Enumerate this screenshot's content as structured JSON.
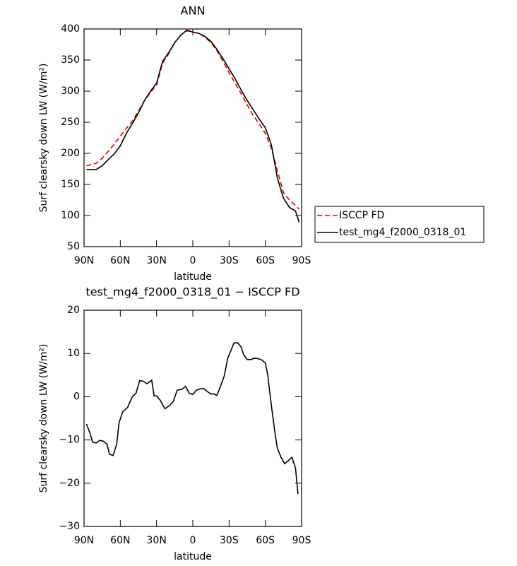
{
  "chart_data": [
    {
      "type": "line",
      "title": "ANN",
      "xlabel": "latitude",
      "ylabel": "Surf clearsky down LW (W/m²)",
      "x": [
        88,
        80,
        75,
        70,
        65,
        60,
        55,
        50,
        45,
        40,
        35,
        30,
        25,
        20,
        15,
        10,
        5,
        0,
        -5,
        -10,
        -15,
        -20,
        -25,
        -30,
        -35,
        -40,
        -45,
        -50,
        -55,
        -60,
        -65,
        -70,
        -75,
        -80,
        -85,
        -88
      ],
      "series": [
        {
          "name": "ISCCP FD",
          "color": "#e00000",
          "dashed": true,
          "values": [
            180,
            184,
            192,
            203,
            215,
            228,
            240,
            252,
            268,
            285,
            298,
            310,
            345,
            360,
            378,
            390,
            397,
            395,
            393,
            387,
            378,
            365,
            348,
            330,
            313,
            296,
            278,
            261,
            247,
            232,
            208,
            172,
            137,
            125,
            116,
            110
          ]
        },
        {
          "name": "test_mg4_f2000_0318_01",
          "color": "#000000",
          "dashed": false,
          "values": [
            174,
            174,
            180,
            190,
            199,
            212,
            232,
            248,
            265,
            285,
            300,
            313,
            348,
            362,
            378,
            390,
            398,
            395,
            393,
            388,
            380,
            367,
            352,
            336,
            320,
            302,
            285,
            270,
            255,
            241,
            214,
            160,
            128,
            113,
            107,
            89
          ]
        }
      ],
      "xlim": [
        90,
        -90
      ],
      "xticks": [
        {
          "value": 90,
          "label": "90N"
        },
        {
          "value": 60,
          "label": "60N"
        },
        {
          "value": 30,
          "label": "30N"
        },
        0,
        {
          "value": -30,
          "label": "30S"
        },
        {
          "value": -60,
          "label": "60S"
        },
        {
          "value": -90,
          "label": "90S"
        }
      ],
      "ylim": [
        50,
        400
      ],
      "yticks": [
        50,
        100,
        150,
        200,
        250,
        300,
        350,
        400
      ],
      "legend": "right"
    },
    {
      "type": "line",
      "title": "test_mg4_f2000_0318_01 − ISCCP FD",
      "xlabel": "latitude",
      "ylabel": "Surf clearsky down LW (W/m²)",
      "x": [
        88,
        85,
        83,
        80,
        77,
        74,
        71,
        69,
        66,
        63,
        61,
        58,
        54,
        50,
        47,
        44,
        41,
        38,
        34,
        32,
        30,
        27,
        23,
        19,
        16,
        13,
        9,
        6,
        3,
        0,
        -3,
        -6,
        -9,
        -12,
        -15,
        -17,
        -20,
        -23,
        -26,
        -29,
        -32,
        -34,
        -37,
        -40,
        -42,
        -45,
        -48,
        -51,
        -54,
        -57,
        -60,
        -62,
        -65,
        -68,
        -70,
        -73,
        -76,
        -79,
        -82,
        -85,
        -87
      ],
      "color": "#000000",
      "values": [
        -6.3,
        -8.5,
        -10.5,
        -10.7,
        -10.1,
        -10.3,
        -11,
        -13.3,
        -13.6,
        -11,
        -6,
        -3.5,
        -2.5,
        0,
        0.8,
        3.7,
        3.6,
        3,
        3.8,
        0.2,
        0.2,
        -0.8,
        -2.8,
        -2,
        -1,
        1.5,
        1.7,
        2.4,
        0.8,
        0.5,
        1.5,
        1.8,
        1.9,
        1.2,
        0.6,
        0.7,
        0.3,
        2.5,
        4.8,
        9,
        11,
        12.4,
        12.5,
        11.5,
        9.7,
        8.6,
        8.6,
        8.9,
        8.8,
        8.5,
        7.8,
        5,
        -2,
        -8.5,
        -12,
        -14,
        -15.5,
        -14.8,
        -14,
        -16.5,
        -22.5
      ],
      "xlim": [
        90,
        -90
      ],
      "xticks": [
        {
          "value": 90,
          "label": "90N"
        },
        {
          "value": 60,
          "label": "60N"
        },
        {
          "value": 30,
          "label": "30N"
        },
        0,
        {
          "value": -30,
          "label": "30S"
        },
        {
          "value": -60,
          "label": "60S"
        },
        {
          "value": -90,
          "label": "90S"
        }
      ],
      "ylim": [
        -30,
        20
      ],
      "yticks": [
        {
          "value": -30,
          "label": "−30"
        },
        {
          "value": -20,
          "label": "−20"
        },
        {
          "value": -10,
          "label": "−10"
        },
        0,
        10,
        20
      ]
    }
  ]
}
